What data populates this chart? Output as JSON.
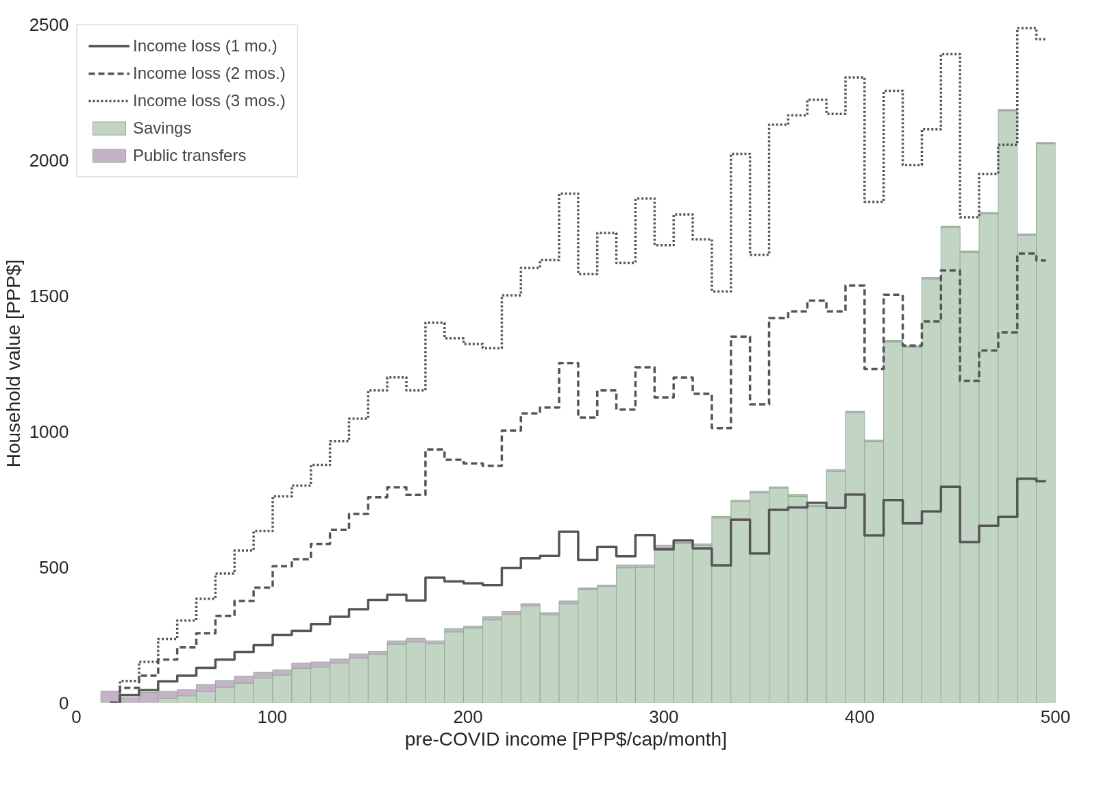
{
  "chart_data": {
    "type": "bar",
    "xlabel": "pre-COVID income [PPP$/cap/month]",
    "ylabel": "Household value [PPP$]",
    "x": [
      17.375,
      27.125,
      36.875,
      46.625,
      56.375,
      66.125,
      75.875,
      85.625,
      95.375,
      105.125,
      114.875,
      124.625,
      134.375,
      144.125,
      153.875,
      163.625,
      173.375,
      183.125,
      192.875,
      202.625,
      212.375,
      222.125,
      231.875,
      241.625,
      251.375,
      261.125,
      270.875,
      280.625,
      290.375,
      300.125,
      309.875,
      319.625,
      329.375,
      339.125,
      348.875,
      358.625,
      368.375,
      378.125,
      387.875,
      397.625,
      407.375,
      417.125,
      426.875,
      436.625,
      446.375,
      456.125,
      465.875,
      475.625,
      485.375,
      495.125
    ],
    "stacked": true,
    "xlim": [
      0,
      500
    ],
    "ylim": [
      0,
      2500
    ],
    "xticks": [
      0,
      100,
      200,
      300,
      400,
      500
    ],
    "yticks": [
      0,
      500,
      1000,
      1500,
      2000,
      2500
    ],
    "grid": false,
    "legend": "top left",
    "series": [
      {
        "name": "Savings",
        "color": "#c2d5c4",
        "values": [
          0,
          0,
          0,
          16,
          25,
          41,
          57,
          72,
          91,
          102,
          127,
          131,
          146,
          165,
          178,
          216,
          224,
          217,
          261,
          275,
          305,
          326,
          357,
          324,
          365,
          417,
          427,
          497,
          499,
          573,
          586,
          578,
          681,
          740,
          774,
          791,
          760,
          723,
          852,
          1068,
          962,
          1330,
          1310,
          1562,
          1750,
          1660,
          1802,
          2181,
          1723,
          2060
        ]
      },
      {
        "name": "Public transfers",
        "color": "#c5b2c9",
        "values": [
          43,
          19,
          38,
          26,
          23,
          26,
          25,
          26,
          21,
          19,
          19,
          19,
          15,
          15,
          11,
          12,
          14,
          11,
          12,
          7,
          12,
          10,
          8,
          8,
          10,
          6,
          6,
          11,
          9,
          8,
          5,
          7,
          6,
          6,
          5,
          4,
          7,
          5,
          7,
          6,
          6,
          6,
          5,
          6,
          6,
          5,
          5,
          5,
          5,
          5
        ]
      },
      {
        "name": "Income loss (1 mo.)",
        "type": "step",
        "color": "#555555",
        "line_style": "solid",
        "values": [
          0,
          28,
          47,
          79,
          100,
          129,
          159,
          187,
          212,
          250,
          265,
          290,
          317,
          345,
          379,
          398,
          377,
          461,
          447,
          440,
          434,
          497,
          532,
          541,
          630,
          526,
          574,
          540,
          618,
          565,
          598,
          569,
          506,
          675,
          550,
          711,
          720,
          737,
          718,
          767,
          617,
          747,
          661,
          705,
          796,
          592,
          652,
          685,
          826,
          816
        ]
      },
      {
        "name": "Income loss (2 mos.)",
        "type": "step",
        "color": "#555555",
        "line_style": "dashed",
        "values": [
          0,
          55,
          100,
          159,
          204,
          256,
          320,
          375,
          424,
          503,
          529,
          585,
          637,
          696,
          757,
          794,
          766,
          933,
          895,
          882,
          873,
          1003,
          1066,
          1088,
          1252,
          1051,
          1151,
          1080,
          1236,
          1125,
          1198,
          1139,
          1012,
          1349,
          1100,
          1417,
          1442,
          1482,
          1442,
          1537,
          1230,
          1503,
          1316,
          1405,
          1593,
          1186,
          1298,
          1365,
          1655,
          1630
        ]
      },
      {
        "name": "Income loss (3 mos.)",
        "type": "step",
        "color": "#555555",
        "line_style": "dotted",
        "values": [
          0,
          80,
          151,
          235,
          303,
          383,
          476,
          561,
          633,
          761,
          800,
          876,
          964,
          1047,
          1151,
          1199,
          1151,
          1400,
          1343,
          1322,
          1307,
          1501,
          1602,
          1631,
          1876,
          1580,
          1731,
          1621,
          1858,
          1686,
          1799,
          1708,
          1516,
          2023,
          1650,
          2130,
          2165,
          2222,
          2170,
          2304,
          1846,
          2255,
          1982,
          2113,
          2391,
          1789,
          1949,
          2056,
          2486,
          2445
        ]
      }
    ]
  }
}
